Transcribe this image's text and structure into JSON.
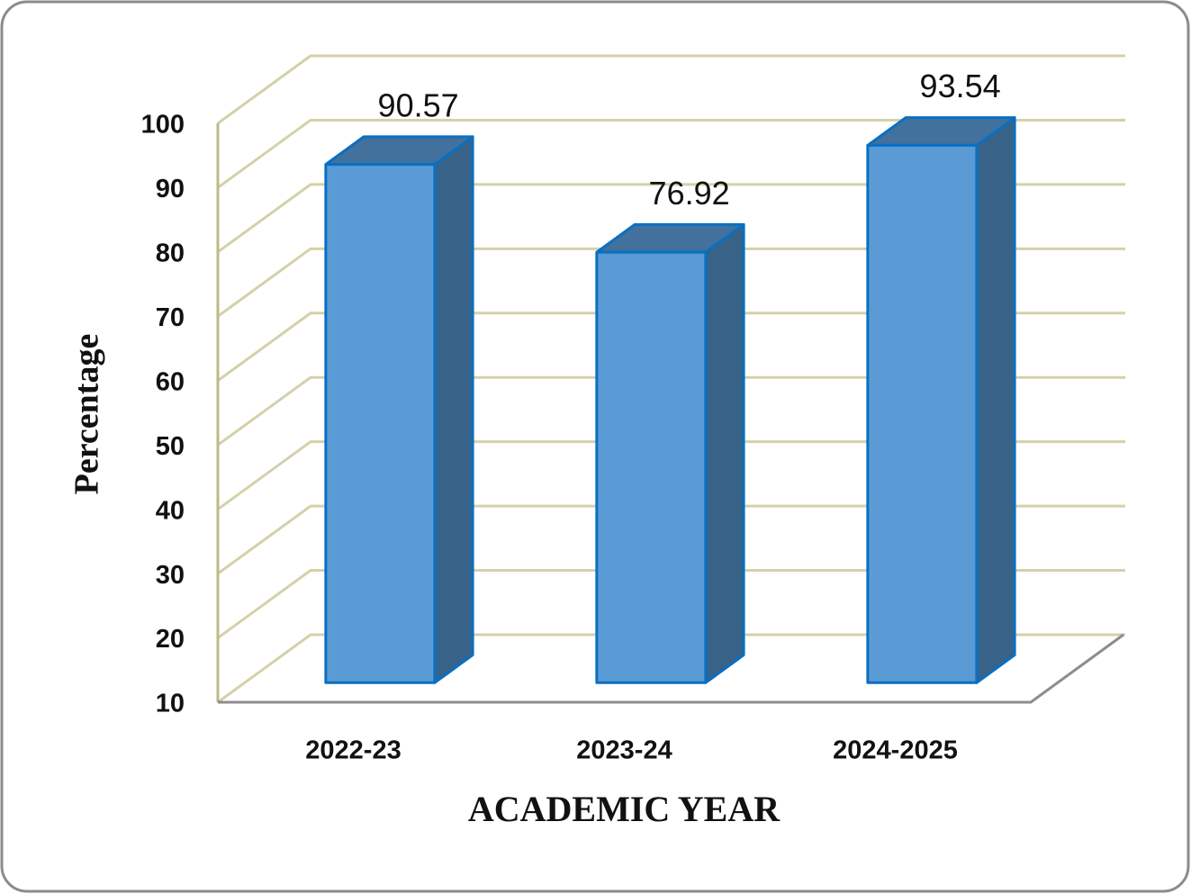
{
  "chart_data": {
    "type": "bar3d",
    "x_label": "ACADEMIC YEAR",
    "y_label": "Percentage",
    "categories": [
      "2022-23",
      "2023-24",
      "2024-2025"
    ],
    "values": [
      90.57,
      76.92,
      93.54
    ],
    "color": "#5b9bd5",
    "ylim": [
      10,
      100
    ],
    "yticks": [
      10,
      20,
      30,
      40,
      50,
      60,
      70,
      80,
      90,
      100
    ],
    "grid": true
  }
}
